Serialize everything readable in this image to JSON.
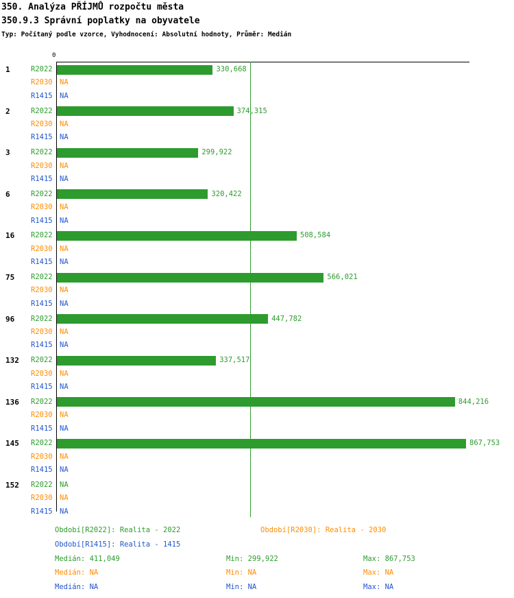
{
  "header": {
    "title_line1": "350. Analýza PŘÍJMŮ rozpočtu města",
    "title_line2": "350.9.3 Správní poplatky na obyvatele",
    "meta_line": "Typ: Počítaný podle vzorce, Vyhodnocení: Absolutní hodnoty, Průměr: Medián"
  },
  "chart_data": {
    "type": "bar",
    "orientation": "horizontal",
    "axis": {
      "zero_label": "0",
      "max_value": 867753
    },
    "median_line": {
      "value": 411049,
      "color": "#2e9b2e"
    },
    "na_label": "NA",
    "series": [
      {
        "key": "R2022",
        "label": "R2022",
        "color": "#2e9b2e",
        "legend": "Období[R2022]: Realita - 2022"
      },
      {
        "key": "R2030",
        "label": "R2030",
        "color": "#ff8c00",
        "legend": "Období[R2030]: Realita - 2030"
      },
      {
        "key": "R1415",
        "label": "R1415",
        "color": "#2255cc",
        "legend": "Období[R1415]: Realita - 1415"
      }
    ],
    "groups": [
      {
        "id": "1",
        "values": [
          330668,
          null,
          null
        ],
        "value_labels": [
          "330,668",
          "NA",
          "NA"
        ]
      },
      {
        "id": "2",
        "values": [
          374315,
          null,
          null
        ],
        "value_labels": [
          "374,315",
          "NA",
          "NA"
        ]
      },
      {
        "id": "3",
        "values": [
          299922,
          null,
          null
        ],
        "value_labels": [
          "299,922",
          "NA",
          "NA"
        ]
      },
      {
        "id": "6",
        "values": [
          320422,
          null,
          null
        ],
        "value_labels": [
          "320,422",
          "NA",
          "NA"
        ]
      },
      {
        "id": "16",
        "values": [
          508584,
          null,
          null
        ],
        "value_labels": [
          "508,584",
          "NA",
          "NA"
        ]
      },
      {
        "id": "75",
        "values": [
          566021,
          null,
          null
        ],
        "value_labels": [
          "566,021",
          "NA",
          "NA"
        ]
      },
      {
        "id": "96",
        "values": [
          447782,
          null,
          null
        ],
        "value_labels": [
          "447,782",
          "NA",
          "NA"
        ]
      },
      {
        "id": "132",
        "values": [
          337517,
          null,
          null
        ],
        "value_labels": [
          "337,517",
          "NA",
          "NA"
        ]
      },
      {
        "id": "136",
        "values": [
          844216,
          null,
          null
        ],
        "value_labels": [
          "844,216",
          "NA",
          "NA"
        ]
      },
      {
        "id": "145",
        "values": [
          867753,
          null,
          null
        ],
        "value_labels": [
          "867,753",
          "NA",
          "NA"
        ]
      },
      {
        "id": "152",
        "values": [
          null,
          null,
          null
        ],
        "value_labels": [
          "NA",
          "NA",
          "NA"
        ]
      }
    ],
    "stats": [
      {
        "series": "R2022",
        "color": "#2e9b2e",
        "median_text": "Medián: 411,049",
        "min_text": "Min: 299,922",
        "max_text": "Max: 867,753",
        "median": 411049,
        "min": 299922,
        "max": 867753
      },
      {
        "series": "R2030",
        "color": "#ff8c00",
        "median_text": "Medián: NA",
        "min_text": "Min: NA",
        "max_text": "Max: NA",
        "median": null,
        "min": null,
        "max": null
      },
      {
        "series": "R1415",
        "color": "#2255cc",
        "median_text": "Medián: NA",
        "min_text": "Min: NA",
        "max_text": "Max: NA",
        "median": null,
        "min": null,
        "max": null
      }
    ]
  }
}
